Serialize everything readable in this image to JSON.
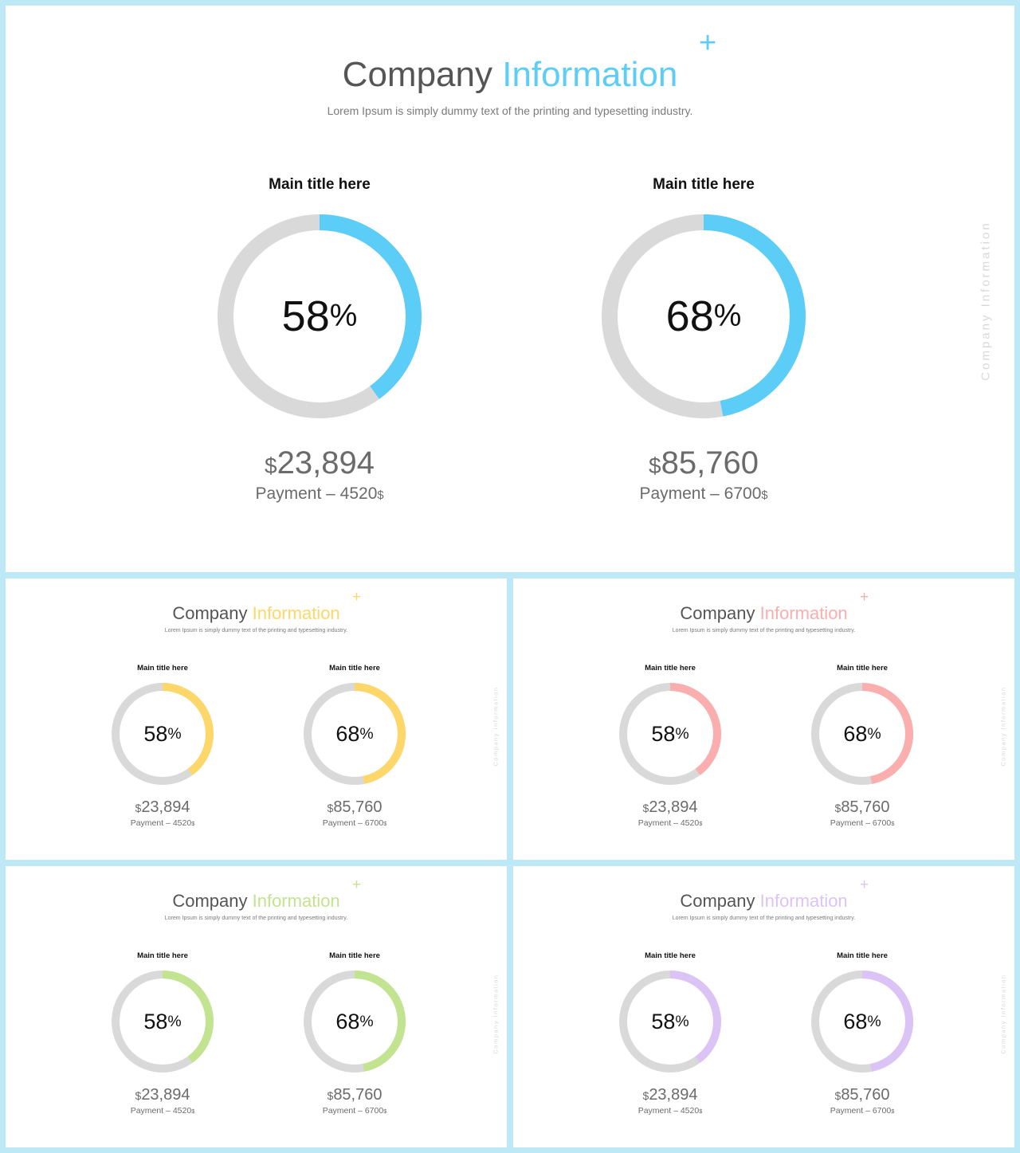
{
  "slides": [
    {
      "id": "slide-blue",
      "accent": "#5bcdf7",
      "title_word1": "Company",
      "title_word2": "Information",
      "subtitle": "Lorem Ipsum is simply dummy text of the printing and typesetting industry.",
      "plus": "+",
      "vertical_text": "Company Information",
      "items": [
        {
          "title": "Main title here",
          "percent": 58,
          "percent_text": "58",
          "percent_symbol": "%",
          "currency_symbol": "$",
          "amount": "23,894",
          "payment_label": "Payment – 4520",
          "payment_currency": "$"
        },
        {
          "title": "Main title here",
          "percent": 68,
          "percent_text": "68",
          "percent_symbol": "%",
          "currency_symbol": "$",
          "amount": "85,760",
          "payment_label": "Payment – 6700",
          "payment_currency": "$"
        }
      ]
    },
    {
      "id": "slide-yellow",
      "accent": "#fdd76a",
      "title_word1": "Company",
      "title_word2": "Information",
      "subtitle": "Lorem Ipsum is simply dummy text of the printing and typesetting industry.",
      "plus": "+",
      "vertical_text": "Company Information",
      "items": [
        {
          "title": "Main title here",
          "percent": 58,
          "percent_text": "58",
          "percent_symbol": "%",
          "currency_symbol": "$",
          "amount": "23,894",
          "payment_label": "Payment – 4520",
          "payment_currency": "$"
        },
        {
          "title": "Main title here",
          "percent": 68,
          "percent_text": "68",
          "percent_symbol": "%",
          "currency_symbol": "$",
          "amount": "85,760",
          "payment_label": "Payment – 6700",
          "payment_currency": "$"
        }
      ]
    },
    {
      "id": "slide-pink",
      "accent": "#fbaeae",
      "title_word1": "Company",
      "title_word2": "Information",
      "subtitle": "Lorem Ipsum is simply dummy text of the printing and typesetting industry.",
      "plus": "+",
      "vertical_text": "Company Information",
      "items": [
        {
          "title": "Main title here",
          "percent": 58,
          "percent_text": "58",
          "percent_symbol": "%",
          "currency_symbol": "$",
          "amount": "23,894",
          "payment_label": "Payment – 4520",
          "payment_currency": "$"
        },
        {
          "title": "Main title here",
          "percent": 68,
          "percent_text": "68",
          "percent_symbol": "%",
          "currency_symbol": "$",
          "amount": "85,760",
          "payment_label": "Payment – 6700",
          "payment_currency": "$"
        }
      ]
    },
    {
      "id": "slide-green",
      "accent": "#c2e38f",
      "title_word1": "Company",
      "title_word2": "Information",
      "subtitle": "Lorem Ipsum is simply dummy text of the printing and typesetting industry.",
      "plus": "+",
      "vertical_text": "Company Information",
      "items": [
        {
          "title": "Main title here",
          "percent": 58,
          "percent_text": "58",
          "percent_symbol": "%",
          "currency_symbol": "$",
          "amount": "23,894",
          "payment_label": "Payment – 4520",
          "payment_currency": "$"
        },
        {
          "title": "Main title here",
          "percent": 68,
          "percent_text": "68",
          "percent_symbol": "%",
          "currency_symbol": "$",
          "amount": "85,760",
          "payment_label": "Payment – 6700",
          "payment_currency": "$"
        }
      ]
    },
    {
      "id": "slide-purple",
      "accent": "#dcc3f5",
      "title_word1": "Company",
      "title_word2": "Information",
      "subtitle": "Lorem Ipsum is simply dummy text of the printing and typesetting industry.",
      "plus": "+",
      "vertical_text": "Company Information",
      "items": [
        {
          "title": "Main title here",
          "percent": 58,
          "percent_text": "58",
          "percent_symbol": "%",
          "currency_symbol": "$",
          "amount": "23,894",
          "payment_label": "Payment – 4520",
          "payment_currency": "$"
        },
        {
          "title": "Main title here",
          "percent": 68,
          "percent_text": "68",
          "percent_symbol": "%",
          "currency_symbol": "$",
          "amount": "85,760",
          "payment_label": "Payment – 6700",
          "payment_currency": "$"
        }
      ]
    }
  ],
  "ring_track_color": "#d9d9d9"
}
